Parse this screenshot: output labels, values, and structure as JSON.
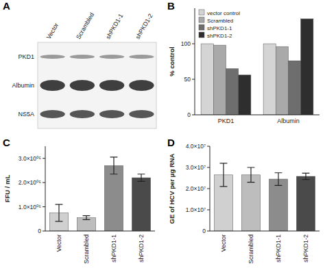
{
  "chart_data": [
    {
      "type": "blot",
      "title": "A",
      "categories": [
        "Vector",
        "Scrambled",
        "shPKD1-1",
        "shPKD1-2"
      ],
      "rows": [
        "PKD1",
        "Albumin",
        "NS5A"
      ]
    },
    {
      "type": "bar",
      "title": "B",
      "categories": [
        "PKD1",
        "Albumin"
      ],
      "ylabel": "% control",
      "ylim": [
        0,
        150
      ],
      "yticks": [
        0,
        50,
        100
      ],
      "legend": "top-left",
      "series": [
        {
          "name": "vector control",
          "color": "#d4d4d4",
          "values": [
            100,
            100
          ]
        },
        {
          "name": "Scrambled",
          "color": "#a9a9a9",
          "values": [
            98,
            96
          ]
        },
        {
          "name": "shPKD1-1",
          "color": "#6e6e6e",
          "values": [
            65,
            76
          ]
        },
        {
          "name": "shPKD1-2",
          "color": "#2e2e2e",
          "values": [
            56,
            135
          ]
        }
      ]
    },
    {
      "type": "bar",
      "title": "C",
      "categories": [
        "Vector",
        "Scrambled",
        "shPKD1-1",
        "shPKD1-2"
      ],
      "ylabel": "FFU / mL",
      "ylim": [
        0,
        350000
      ],
      "yticks": [
        0,
        {
          "value": 100000,
          "label": "1.0×10⁰⁵"
        },
        {
          "value": 200000,
          "label": "2.0×10⁰⁵"
        },
        {
          "value": 300000,
          "label": "3.0×10⁰⁵"
        }
      ],
      "values": [
        75000,
        55000,
        270000,
        220000
      ],
      "errors": [
        35000,
        8000,
        35000,
        15000
      ],
      "colors": [
        "#d0d0d0",
        "#bdbdbd",
        "#8c8c8c",
        "#4a4a4a"
      ]
    },
    {
      "type": "bar",
      "title": "D",
      "categories": [
        "Vector",
        "Scrambled",
        "shPKD1-1",
        "shPKD1-2"
      ],
      "ylabel": "GE of HCV per μg RNA",
      "ylim": [
        0,
        40000000
      ],
      "yticks": [
        0,
        {
          "value": 10000000,
          "label": "1.0×10⁷"
        },
        {
          "value": 20000000,
          "label": "2.0×10⁷"
        },
        {
          "value": 30000000,
          "label": "3.0×10⁷"
        },
        {
          "value": 40000000,
          "label": "4.0×10⁷"
        }
      ],
      "values": [
        26500000,
        26500000,
        24500000,
        25800000
      ],
      "errors": [
        5500000,
        3500000,
        3000000,
        1500000
      ],
      "colors": [
        "#d0d0d0",
        "#bdbdbd",
        "#8c8c8c",
        "#4a4a4a"
      ]
    }
  ]
}
